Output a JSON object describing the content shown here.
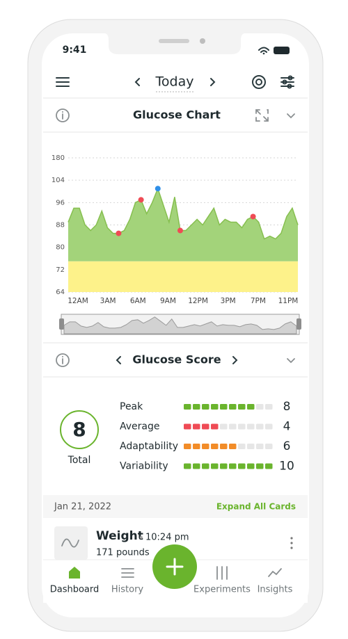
{
  "status_bar": {
    "time": "9:41"
  },
  "header": {
    "title": "Today"
  },
  "glucose_chart": {
    "title": "Glucose Chart"
  },
  "chart_data": {
    "type": "area",
    "x_labels": [
      "12AM",
      "3AM",
      "6AM",
      "9AM",
      "12PM",
      "3PM",
      "7PM",
      "11PM"
    ],
    "series": [
      {
        "type": "area",
        "color": "#a3d37a",
        "line_color": "#86bf4f",
        "values": [
          89,
          94,
          94,
          88,
          86,
          88,
          93,
          87,
          85,
          85,
          86,
          90,
          96,
          97,
          92,
          96,
          101,
          95,
          89,
          98,
          86,
          86,
          88,
          90,
          88,
          91,
          94,
          88,
          90,
          89,
          89,
          87,
          90,
          91,
          89,
          83,
          84,
          83,
          85,
          91,
          94,
          88
        ]
      },
      {
        "type": "scatter",
        "color": "#ef4b55",
        "values": [
          null,
          null,
          null,
          null,
          null,
          null,
          null,
          null,
          null,
          85,
          null,
          null,
          null,
          97,
          null,
          null,
          null,
          null,
          null,
          null,
          86,
          null,
          null,
          null,
          null,
          null,
          null,
          null,
          null,
          null,
          null,
          null,
          null,
          91,
          null,
          null,
          null,
          null,
          null,
          null,
          null,
          null
        ]
      },
      {
        "type": "scatter",
        "color": "#2f8fe8",
        "values": [
          null,
          null,
          null,
          null,
          null,
          null,
          null,
          null,
          null,
          null,
          null,
          null,
          null,
          null,
          null,
          null,
          101,
          null,
          null,
          null,
          null,
          null,
          null,
          null,
          null,
          null,
          null,
          null,
          null,
          null,
          null,
          null,
          null,
          null,
          null,
          null,
          null,
          null,
          null,
          null,
          null,
          null
        ]
      }
    ],
    "target_range": {
      "values": [
        64,
        75
      ],
      "color": "#fdf28a"
    },
    "ylim": [
      64,
      180
    ],
    "yticks": [
      64,
      72,
      80,
      88,
      96,
      104,
      180
    ],
    "grid": true
  },
  "glucose_score": {
    "title": "Glucose Score",
    "total": 8,
    "total_label": "Total",
    "segments": 10,
    "metrics": [
      {
        "name": "Peak",
        "value": 8,
        "color": "#6ab42d"
      },
      {
        "name": "Average",
        "value": 4,
        "color": "#ef4b55"
      },
      {
        "name": "Adaptability",
        "value": 6,
        "color": "#f28c28"
      },
      {
        "name": "Variability",
        "value": 10,
        "color": "#6ab42d"
      }
    ]
  },
  "date_row": {
    "date": "Jan 21, 2022",
    "action": "Expand All Cards"
  },
  "card": {
    "title": "Weight",
    "time": "10:24 pm",
    "value": "171 pounds"
  },
  "tabs": [
    "Dashboard",
    "History",
    "Experiments",
    "Insights"
  ]
}
